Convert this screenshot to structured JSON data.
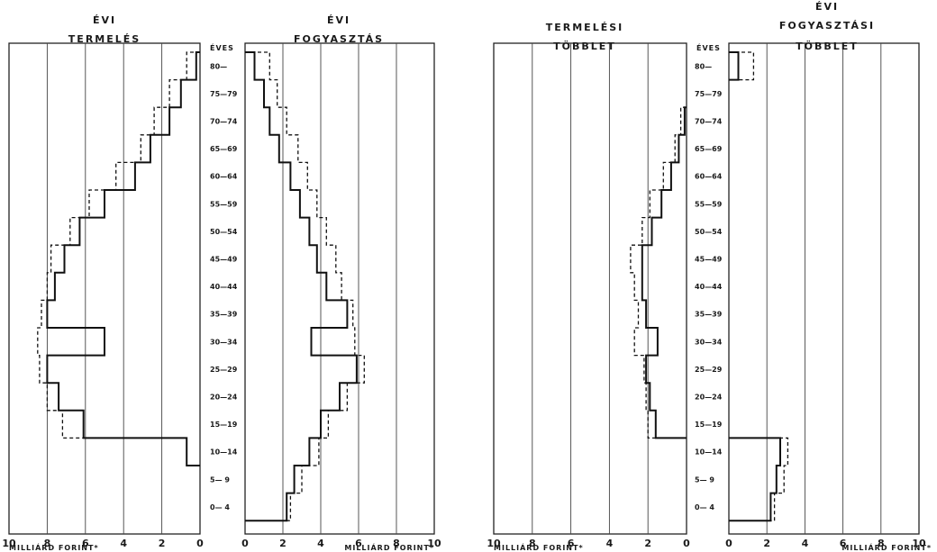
{
  "age_axis": {
    "header": "ÉVES",
    "labels": [
      "80—",
      "75—79",
      "70—74",
      "65—69",
      "60—64",
      "55—59",
      "50—54",
      "45—49",
      "40—44",
      "35—39",
      "30—34",
      "25—29",
      "20—24",
      "15—19",
      "10—14",
      "5— 9",
      "0— 4"
    ]
  },
  "chart_data": [
    {
      "type": "bar",
      "orientation": "horizontal-step",
      "title_lines": [
        "ÉVI",
        "TERMELÉS"
      ],
      "xlabel": "MILLIÁRD FORINT*",
      "xlim": [
        10,
        0
      ],
      "xticks": [
        "10",
        "8",
        "6",
        "4",
        "2",
        "0"
      ],
      "grid": true,
      "categories": [
        "80—",
        "75—79",
        "70—74",
        "65—69",
        "60—64",
        "55—59",
        "50—54",
        "45—49",
        "40—44",
        "35—39",
        "30—34",
        "25—29",
        "20—24",
        "15—19",
        "10—14",
        "5— 9",
        "0— 4"
      ],
      "series": [
        {
          "style": "solid",
          "values": [
            0.2,
            1.0,
            1.6,
            2.6,
            3.4,
            5.0,
            6.3,
            7.1,
            7.6,
            8.0,
            5.0,
            8.0,
            7.4,
            6.1,
            0.7,
            0.0,
            0.0
          ]
        },
        {
          "style": "dashed",
          "values": [
            0.7,
            1.6,
            2.4,
            3.1,
            4.4,
            5.8,
            6.8,
            7.8,
            8.0,
            8.3,
            8.5,
            8.4,
            8.0,
            7.2,
            0.7,
            0.0,
            0.0
          ]
        }
      ]
    },
    {
      "type": "bar",
      "orientation": "horizontal-step",
      "title_lines": [
        "ÉVI",
        "FOGYASZTÁS"
      ],
      "xlabel": "MILLIÁRD FORINT*",
      "xlim": [
        0,
        10
      ],
      "xticks": [
        "0",
        "2",
        "4",
        "6",
        "8",
        "10"
      ],
      "grid": true,
      "categories": [
        "80—",
        "75—79",
        "70—74",
        "65—69",
        "60—64",
        "55—59",
        "50—54",
        "45—49",
        "40—44",
        "35—39",
        "30—34",
        "25—29",
        "20—24",
        "15—19",
        "10—14",
        "5— 9",
        "0— 4"
      ],
      "series": [
        {
          "style": "solid",
          "values": [
            0.5,
            1.0,
            1.3,
            1.8,
            2.4,
            2.9,
            3.4,
            3.8,
            4.3,
            5.4,
            3.5,
            5.9,
            5.0,
            4.0,
            3.4,
            2.6,
            2.2
          ]
        },
        {
          "style": "dashed",
          "values": [
            1.3,
            1.7,
            2.2,
            2.8,
            3.3,
            3.8,
            4.3,
            4.8,
            5.1,
            5.7,
            5.8,
            6.3,
            5.4,
            4.4,
            3.9,
            3.0,
            2.4
          ]
        }
      ]
    },
    {
      "type": "bar",
      "orientation": "horizontal-step",
      "title_lines": [
        "TERMELÉSI",
        "TÖBBLET"
      ],
      "xlabel": "MILLIÁRD FORINT*",
      "xlim": [
        10,
        0
      ],
      "xticks": [
        "10",
        "8",
        "6",
        "4",
        "2",
        "0"
      ],
      "grid": true,
      "categories": [
        "80—",
        "75—79",
        "70—74",
        "65—69",
        "60—64",
        "55—59",
        "50—54",
        "45—49",
        "40—44",
        "35—39",
        "30—34",
        "25—29",
        "20—24",
        "15—19",
        "10—14",
        "5— 9",
        "0— 4"
      ],
      "series": [
        {
          "style": "solid",
          "values": [
            0,
            0,
            0.1,
            0.4,
            0.8,
            1.3,
            1.8,
            2.3,
            2.3,
            2.1,
            1.5,
            2.1,
            1.9,
            1.6,
            0,
            0,
            0
          ]
        },
        {
          "style": "dashed",
          "values": [
            0,
            0,
            0.3,
            0.6,
            1.2,
            1.9,
            2.3,
            2.9,
            2.7,
            2.5,
            2.7,
            2.2,
            2.1,
            2.0,
            0,
            0,
            0
          ]
        }
      ]
    },
    {
      "type": "bar",
      "orientation": "horizontal-step",
      "title_lines": [
        "ÉVI",
        "FOGYASZTÁSI",
        "TÖBBLET"
      ],
      "xlabel": "MILLIÁRD FORINT*",
      "xlim": [
        0,
        10
      ],
      "xticks": [
        "0",
        "2",
        "4",
        "6",
        "8",
        "10"
      ],
      "grid": true,
      "categories": [
        "80—",
        "75—79",
        "70—74",
        "65—69",
        "60—64",
        "55—59",
        "50—54",
        "45—49",
        "40—44",
        "35—39",
        "30—34",
        "25—29",
        "20—24",
        "15—19",
        "10—14",
        "5— 9",
        "0— 4"
      ],
      "series": [
        {
          "style": "solid",
          "values": [
            0.5,
            0,
            0,
            0,
            0,
            0,
            0,
            0,
            0,
            0,
            0,
            0,
            0,
            0,
            2.7,
            2.5,
            2.2
          ]
        },
        {
          "style": "dashed",
          "values": [
            1.3,
            0,
            0,
            0,
            0,
            0,
            0,
            0,
            0,
            0,
            0,
            0,
            0,
            0,
            3.1,
            2.9,
            2.4
          ]
        }
      ]
    }
  ]
}
